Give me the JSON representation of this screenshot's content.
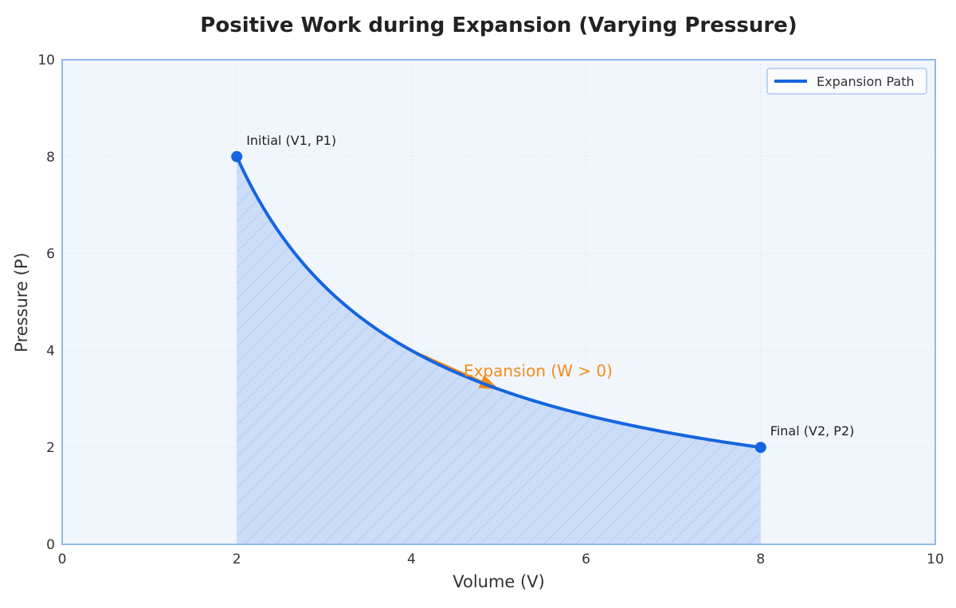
{
  "chart_data": {
    "type": "line",
    "title": "Positive Work during Expansion (Varying Pressure)",
    "xlabel": "Volume (V)",
    "ylabel": "Pressure (P)",
    "xlim": [
      0,
      10
    ],
    "ylim": [
      0,
      10
    ],
    "xticks": [
      "0",
      "2",
      "4",
      "6",
      "8",
      "10"
    ],
    "yticks": [
      "0",
      "2",
      "4",
      "6",
      "8",
      "10"
    ],
    "grid": true,
    "legend_position": "top-right",
    "series": [
      {
        "name": "Expansion Path",
        "color": "#1565e0",
        "relation": "P = 16 / V",
        "x": [
          2,
          2.5,
          3,
          3.5,
          4,
          4.5,
          5,
          5.5,
          6,
          6.5,
          7,
          7.5,
          8
        ],
        "y": [
          8,
          6.4,
          5.33,
          4.57,
          4,
          3.56,
          3.2,
          2.91,
          2.67,
          2.46,
          2.29,
          2.13,
          2
        ]
      }
    ],
    "points": [
      {
        "label": "Initial (V1, P1)",
        "x": 2,
        "y": 8
      },
      {
        "label": "Final (V2, P2)",
        "x": 8,
        "y": 2
      }
    ],
    "shaded_area": {
      "x_from": 2,
      "x_to": 8,
      "color": "#c5d8f8",
      "hatch": true
    },
    "annotation": {
      "text": "Expansion (W > 0)",
      "color": "#f28c1a",
      "arrow_from": [
        4,
        4
      ],
      "arrow_to": [
        5,
        3.2
      ]
    },
    "colors": {
      "line": "#1565e0",
      "plot_background": "#f1f6fd",
      "frame": "#90b8ee",
      "annotation": "#f28c1a"
    }
  }
}
